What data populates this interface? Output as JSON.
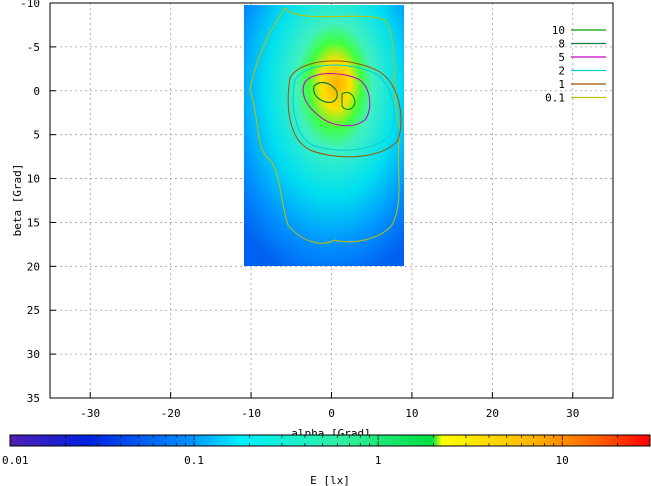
{
  "chart_data": {
    "type": "heatmap",
    "xlabel": "alpha [Grad]",
    "ylabel": "beta [Grad]",
    "xlim": [
      -35,
      35
    ],
    "ylim": [
      -10,
      35
    ],
    "y_inverted": true,
    "grid": true,
    "x_ticks": [
      "-30",
      "-20",
      "-10",
      "0",
      "10",
      "20",
      "30"
    ],
    "y_ticks": [
      "-10",
      "-5",
      "0",
      "5",
      "10",
      "15",
      "20",
      "25",
      "30",
      "35"
    ],
    "data_extent": {
      "alpha": [
        -11,
        9
      ],
      "beta": [
        -10,
        20
      ]
    },
    "peak": {
      "alpha": 2,
      "beta": 1,
      "value": 14
    },
    "legend": {
      "placement": "top-right",
      "entries": [
        {
          "label": "10",
          "color": "#00a000"
        },
        {
          "label": "8",
          "color": "#008040"
        },
        {
          "label": "5",
          "color": "#c000c0"
        },
        {
          "label": "2",
          "color": "#00d0d0"
        },
        {
          "label": "1",
          "color": "#a05000"
        },
        {
          "label": "0.1",
          "color": "#c0c000"
        }
      ]
    },
    "colorbar": {
      "label": "E [lx]",
      "scale": "log",
      "range": [
        0.01,
        30
      ],
      "tick_labels": [
        "0.01",
        "0.1",
        "1",
        "10"
      ],
      "colors": [
        "#5020b0",
        "#0020e0",
        "#0090ff",
        "#00f0ff",
        "#30f0a0",
        "#00e040",
        "#ffff00",
        "#ffc000",
        "#ff6000",
        "#ff0000"
      ]
    }
  }
}
